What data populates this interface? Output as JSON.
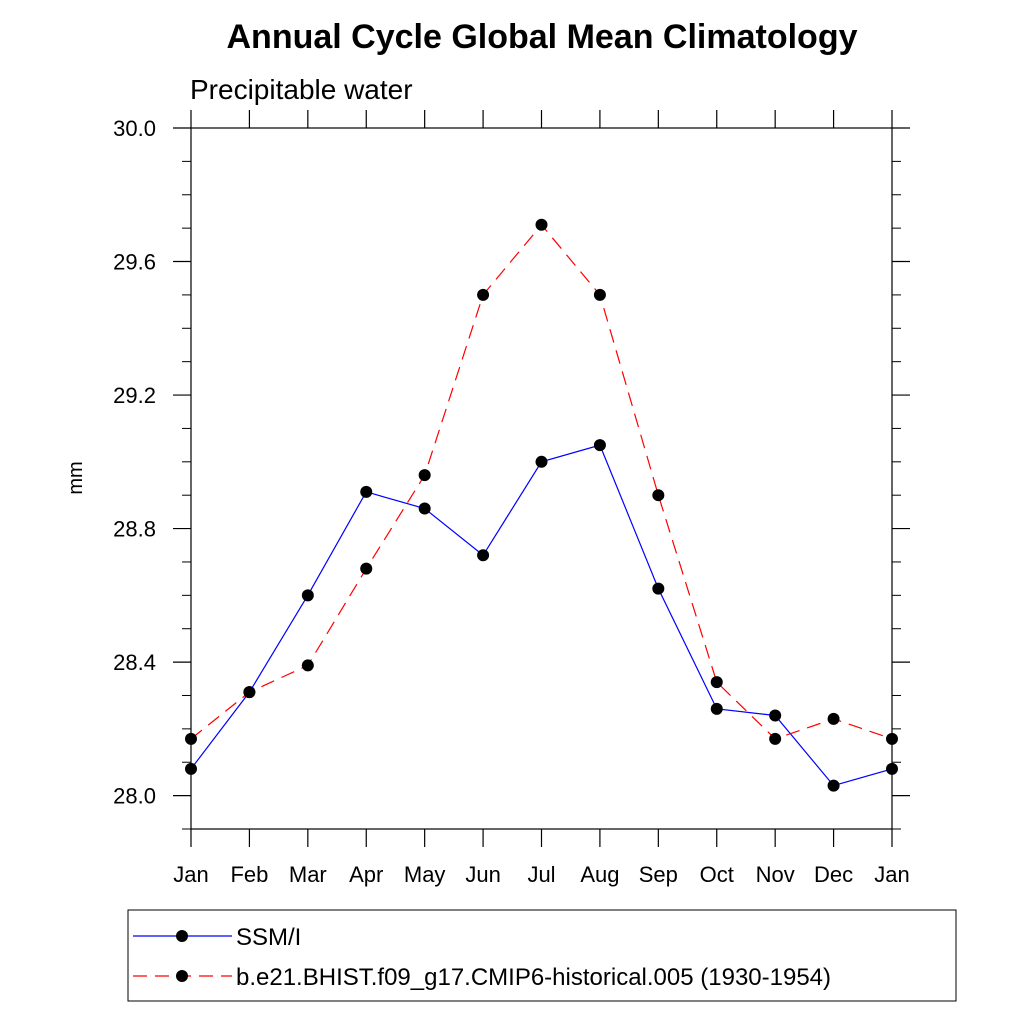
{
  "chart_data": {
    "type": "line",
    "title": "Annual Cycle Global Mean Climatology",
    "subtitle": "Precipitable water",
    "xlabel": "",
    "ylabel": "mm",
    "categories": [
      "Jan",
      "Feb",
      "Mar",
      "Apr",
      "May",
      "Jun",
      "Jul",
      "Aug",
      "Sep",
      "Oct",
      "Nov",
      "Dec",
      "Jan"
    ],
    "ylim": [
      27.9,
      30.0
    ],
    "yticks": [
      28.0,
      28.4,
      28.8,
      29.2,
      29.6,
      30.0
    ],
    "ytick_labels": [
      "28.0",
      "28.4",
      "28.8",
      "29.2",
      "29.6",
      "30.0"
    ],
    "grid": false,
    "legend_position": "bottom",
    "series": [
      {
        "name": "SSM/I",
        "color": "#0000ff",
        "dash": "solid",
        "marker": "filled-circle",
        "values": [
          28.08,
          28.31,
          28.6,
          28.91,
          28.86,
          28.72,
          29.0,
          29.05,
          28.62,
          28.26,
          28.24,
          28.03,
          28.08
        ]
      },
      {
        "name": "b.e21.BHIST.f09_g17.CMIP6-historical.005 (1930-1954)",
        "color": "#ff0000",
        "dash": "dashed",
        "marker": "filled-circle",
        "values": [
          28.17,
          28.31,
          28.39,
          28.68,
          28.96,
          29.5,
          29.71,
          29.5,
          28.9,
          28.34,
          28.17,
          28.23,
          28.17
        ]
      }
    ]
  }
}
